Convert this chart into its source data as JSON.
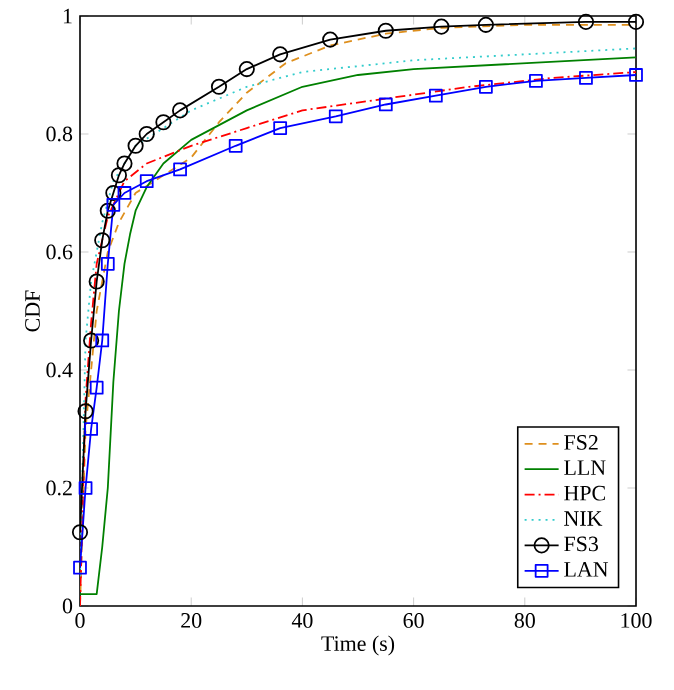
{
  "chart_data": {
    "type": "line",
    "xlabel": "Time (s)",
    "ylabel": "CDF",
    "xlim": [
      0,
      100
    ],
    "ylim": [
      0,
      1
    ],
    "xticks": [
      0,
      20,
      40,
      60,
      80,
      100
    ],
    "yticks": [
      0,
      0.2,
      0.4,
      0.6,
      0.8,
      1
    ],
    "grid": false,
    "legend": "bottom right",
    "series": [
      {
        "name": "FS2",
        "color": "#de8f1d",
        "line_style": "dashed",
        "marker": "none",
        "x": [
          0,
          1,
          3,
          5,
          7,
          10,
          15,
          20,
          25,
          30,
          37,
          45,
          55,
          65,
          80,
          100
        ],
        "values": [
          0,
          0.3,
          0.5,
          0.6,
          0.65,
          0.7,
          0.73,
          0.76,
          0.82,
          0.87,
          0.92,
          0.95,
          0.97,
          0.98,
          0.985,
          0.985
        ]
      },
      {
        "name": "LLN",
        "color": "#008000",
        "line_style": "solid",
        "marker": "none",
        "x": [
          0,
          3,
          4,
          5,
          6,
          7,
          8,
          9,
          10,
          12,
          15,
          20,
          30,
          40,
          50,
          60,
          80,
          100
        ],
        "values": [
          0.02,
          0.02,
          0.1,
          0.2,
          0.38,
          0.5,
          0.58,
          0.63,
          0.67,
          0.71,
          0.75,
          0.79,
          0.84,
          0.88,
          0.9,
          0.91,
          0.92,
          0.93
        ]
      },
      {
        "name": "HPC",
        "color": "#ff0000",
        "line_style": "dashdot",
        "marker": "none",
        "x": [
          0,
          1,
          2,
          3,
          5,
          8,
          12,
          20,
          30,
          40,
          55,
          70,
          85,
          100
        ],
        "values": [
          0,
          0.35,
          0.48,
          0.58,
          0.66,
          0.72,
          0.75,
          0.78,
          0.81,
          0.84,
          0.86,
          0.88,
          0.895,
          0.905
        ]
      },
      {
        "name": "NIK",
        "color": "#33cccc",
        "line_style": "dotted",
        "marker": "none",
        "x": [
          0,
          1,
          2,
          4,
          6,
          10,
          15,
          20,
          30,
          40,
          60,
          80,
          100
        ],
        "values": [
          0.05,
          0.45,
          0.55,
          0.65,
          0.72,
          0.78,
          0.81,
          0.84,
          0.88,
          0.905,
          0.925,
          0.935,
          0.945
        ]
      },
      {
        "name": "FS3",
        "color": "#000000",
        "line_style": "solid",
        "marker": "circle",
        "x": [
          0,
          1,
          2,
          3,
          4,
          5,
          6,
          7,
          8,
          10,
          12,
          15,
          18,
          25,
          30,
          36,
          45,
          55,
          65,
          73,
          91,
          100
        ],
        "values": [
          0.125,
          0.33,
          0.45,
          0.55,
          0.62,
          0.67,
          0.7,
          0.73,
          0.75,
          0.78,
          0.8,
          0.82,
          0.84,
          0.88,
          0.91,
          0.935,
          0.96,
          0.975,
          0.982,
          0.985,
          0.99,
          0.99
        ]
      },
      {
        "name": "LAN",
        "color": "#0000ff",
        "line_style": "solid",
        "marker": "square",
        "x": [
          0,
          1,
          2,
          3,
          4,
          5,
          6,
          8,
          12,
          18,
          28,
          36,
          46,
          55,
          64,
          73,
          82,
          91,
          100
        ],
        "values": [
          0.065,
          0.2,
          0.3,
          0.37,
          0.45,
          0.58,
          0.68,
          0.7,
          0.72,
          0.74,
          0.78,
          0.81,
          0.83,
          0.85,
          0.865,
          0.88,
          0.89,
          0.895,
          0.9
        ]
      }
    ]
  }
}
